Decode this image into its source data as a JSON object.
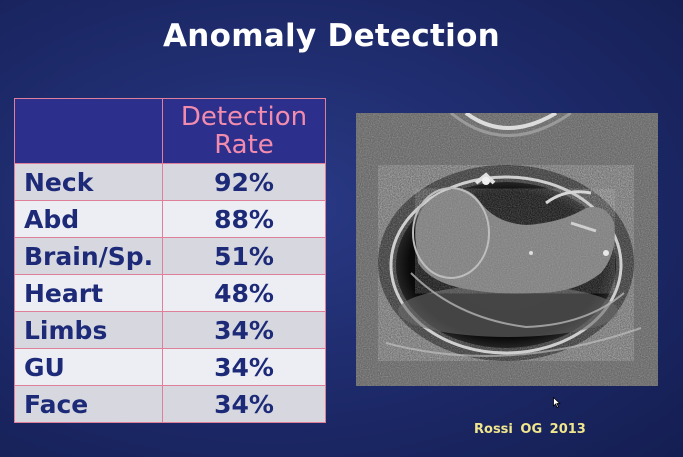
{
  "slide": {
    "title": "Anomaly Detection",
    "citation": "Rossi  OG 2013"
  },
  "table": {
    "corner_header": "",
    "rate_header_line1": "Detection",
    "rate_header_line2": "Rate",
    "rows": [
      {
        "region": "Neck",
        "rate": "92%"
      },
      {
        "region": "Abd",
        "rate": "88%"
      },
      {
        "region": "Brain/Sp.",
        "rate": "51%"
      },
      {
        "region": "Heart",
        "rate": "48%"
      },
      {
        "region": "Limbs",
        "rate": "34%"
      },
      {
        "region": "GU",
        "rate": "34%"
      },
      {
        "region": "Face",
        "rate": "34%"
      }
    ]
  },
  "colors": {
    "background": "#1f2c6e",
    "header_fill": "#2c2f8c",
    "header_text": "#f28cae",
    "cell_border": "#e07f9a",
    "cell_text": "#1d2a78",
    "citation_text": "#f0e68c"
  },
  "image": {
    "kind": "ultrasound-scan"
  }
}
